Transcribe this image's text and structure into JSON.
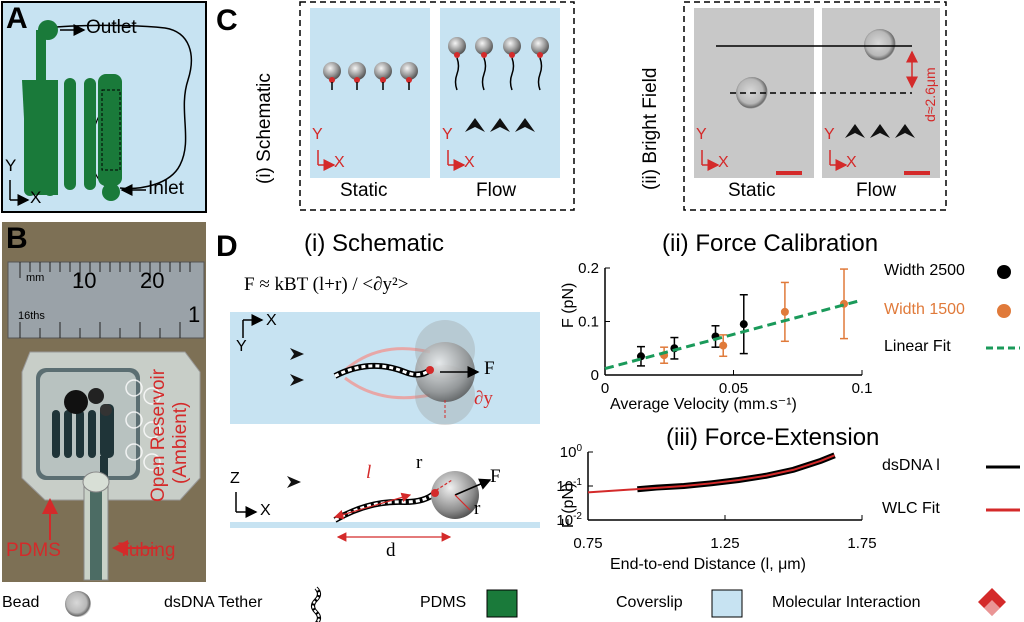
{
  "panel_letters": {
    "a": "A",
    "b": "B",
    "c": "C",
    "d": "D"
  },
  "panel_a": {
    "outlet": "Outlet",
    "inlet": "Inlet",
    "axis_y": "Y",
    "axis_x": "X"
  },
  "panel_b": {
    "ruler_unit_mm": "mm",
    "ruler_10": "10",
    "ruler_20": "20",
    "ruler_16ths": "16ths",
    "ruler_1": "1",
    "reservoir": "Open Reservoir",
    "ambient": "(Ambient)",
    "pdms": "PDMS",
    "tubing": "Tubing"
  },
  "panel_c": {
    "schematic_title": "(i) Schematic",
    "brightfield_title": "(ii) Bright Field",
    "static": "Static",
    "flow": "Flow",
    "axis_y": "Y",
    "axis_x": "X",
    "distance_label": "d≈2.6μm"
  },
  "panel_d": {
    "schematic_title": "(i) Schematic",
    "formula": "F ≈ kBT (l+r) / <∂y²>",
    "axis_x": "X",
    "axis_y": "Y",
    "axis_z": "Z",
    "force": "F",
    "dy": "∂y",
    "l": "l",
    "r": "r",
    "d": "d"
  },
  "force_calibration": {
    "title": "(ii) Force Calibration",
    "ylabel": "F (pN)",
    "xlabel": "Average Velocity (mm.s⁻¹)",
    "legend_2500": "Width 2500",
    "legend_1500": "Width 1500",
    "legend_fit": "Linear Fit"
  },
  "force_extension": {
    "title": "(iii) Force-Extension",
    "ylabel": "F (pN)",
    "xlabel": "End-to-end Distance (l, μm)",
    "legend_dsdna": "dsDNA l",
    "legend_wlc": "WLC Fit"
  },
  "legend_bottom": {
    "bead": "Bead",
    "tether": "dsDNA Tether",
    "pdms": "PDMS",
    "coverslip": "Coverslip",
    "interaction": "Molecular Interaction"
  },
  "colors": {
    "pdms": "#1a7a3a",
    "coverslip": "#c7e3f2",
    "accent_red": "#d42a2a",
    "width2500": "#000000",
    "width1500": "#e07a3a",
    "linear_fit": "#1a9a5a",
    "wlc_fit": "#d42a2a"
  },
  "chart_data": [
    {
      "type": "scatter",
      "title": "(ii) Force Calibration",
      "xlabel": "Average Velocity (mm.s⁻¹)",
      "ylabel": "F (pN)",
      "xlim": [
        0,
        0.1
      ],
      "ylim": [
        0,
        0.2
      ],
      "xticks": [
        "0",
        "0.05",
        "0.1"
      ],
      "yticks": [
        "0",
        "0.1",
        "0.2"
      ],
      "series": [
        {
          "name": "Width 2500",
          "color": "#000000",
          "x": [
            0.014,
            0.027,
            0.043,
            0.054
          ],
          "y": [
            0.035,
            0.05,
            0.072,
            0.095
          ],
          "err": [
            0.018,
            0.02,
            0.02,
            0.055
          ]
        },
        {
          "name": "Width 1500",
          "color": "#e07a3a",
          "x": [
            0.023,
            0.046,
            0.07,
            0.093
          ],
          "y": [
            0.037,
            0.055,
            0.118,
            0.133
          ],
          "err": [
            0.015,
            0.02,
            0.055,
            0.065
          ]
        },
        {
          "name": "Linear Fit",
          "color": "#1a9a5a",
          "kind": "line",
          "x": [
            0,
            0.1
          ],
          "y": [
            0.012,
            0.14
          ]
        }
      ],
      "legend": "right"
    },
    {
      "type": "line",
      "title": "(iii) Force-Extension",
      "xlabel": "End-to-end Distance (l, μm)",
      "ylabel": "F (pN)",
      "xlim": [
        0.75,
        1.75
      ],
      "ylim": [
        0.01,
        1
      ],
      "yscale": "log",
      "xticks": [
        "0.75",
        "1.25",
        "1.75"
      ],
      "series": [
        {
          "name": "dsDNA l",
          "color": "#000000",
          "x": [
            0.93,
            1.0,
            1.1,
            1.2,
            1.3,
            1.4,
            1.5,
            1.6,
            1.65
          ],
          "y": [
            0.08,
            0.09,
            0.1,
            0.12,
            0.15,
            0.2,
            0.3,
            0.55,
            0.8
          ]
        },
        {
          "name": "WLC Fit",
          "color": "#d42a2a",
          "x": [
            0.75,
            0.9,
            1.0,
            1.1,
            1.2,
            1.3,
            1.4,
            1.5,
            1.6,
            1.65
          ],
          "y": [
            0.065,
            0.078,
            0.088,
            0.1,
            0.12,
            0.15,
            0.2,
            0.3,
            0.55,
            0.8
          ]
        }
      ],
      "legend": "right"
    }
  ]
}
